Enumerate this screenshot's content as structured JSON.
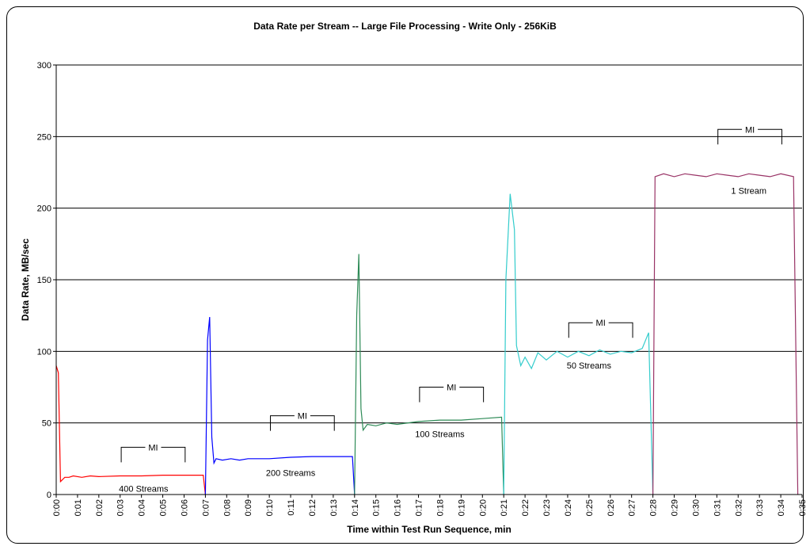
{
  "chart_data": {
    "type": "line",
    "title": "Data Rate per Stream -- Large File Processing - Write Only - 256KiB",
    "xlabel": "Time within Test Run Sequence, min",
    "ylabel": "Data Rate, MB/sec",
    "ylim": [
      0,
      300
    ],
    "yticks": [
      0,
      50,
      100,
      150,
      200,
      250,
      300
    ],
    "xlim": [
      0,
      35
    ],
    "xticks": [
      "0:00",
      "0:01",
      "0:02",
      "0:03",
      "0:04",
      "0:05",
      "0:06",
      "0:07",
      "0:08",
      "0:09",
      "0:10",
      "0:11",
      "0:12",
      "0:13",
      "0:14",
      "0:15",
      "0:16",
      "0:17",
      "0:18",
      "0:19",
      "0:20",
      "0:21",
      "0:22",
      "0:23",
      "0:24",
      "0:25",
      "0:26",
      "0:27",
      "0:28",
      "0:29",
      "0:30",
      "0:31",
      "0:32",
      "0:33",
      "0:34",
      "0:35"
    ],
    "grid": "horizontal",
    "series": [
      {
        "name": "400 Streams",
        "color": "#ff0000",
        "points": [
          [
            0.0,
            90
          ],
          [
            0.1,
            85
          ],
          [
            0.2,
            9
          ],
          [
            0.4,
            12
          ],
          [
            0.6,
            12
          ],
          [
            0.8,
            13
          ],
          [
            1.2,
            12
          ],
          [
            1.6,
            13
          ],
          [
            2.0,
            12.5
          ],
          [
            3.0,
            13
          ],
          [
            4.0,
            13
          ],
          [
            5.0,
            13.5
          ],
          [
            6.0,
            13.5
          ],
          [
            6.9,
            13.5
          ],
          [
            7.0,
            0
          ]
        ]
      },
      {
        "name": "200 Streams",
        "color": "#0000ff",
        "points": [
          [
            7.0,
            0
          ],
          [
            7.1,
            108
          ],
          [
            7.2,
            124
          ],
          [
            7.3,
            40
          ],
          [
            7.4,
            22
          ],
          [
            7.5,
            25
          ],
          [
            7.8,
            24
          ],
          [
            8.2,
            25
          ],
          [
            8.6,
            24
          ],
          [
            9.0,
            25
          ],
          [
            10.0,
            25
          ],
          [
            11.0,
            26
          ],
          [
            12.0,
            26.5
          ],
          [
            13.0,
            26.5
          ],
          [
            13.9,
            26.5
          ],
          [
            14.0,
            0
          ]
        ]
      },
      {
        "name": "100 Streams",
        "color": "#2e8b57",
        "points": [
          [
            14.0,
            0
          ],
          [
            14.1,
            125
          ],
          [
            14.2,
            168
          ],
          [
            14.3,
            60
          ],
          [
            14.4,
            45
          ],
          [
            14.6,
            49
          ],
          [
            15.0,
            48
          ],
          [
            15.5,
            50
          ],
          [
            16.0,
            49
          ],
          [
            17.0,
            51
          ],
          [
            18.0,
            52
          ],
          [
            19.0,
            52
          ],
          [
            20.0,
            53
          ],
          [
            20.9,
            54
          ],
          [
            21.0,
            0
          ]
        ]
      },
      {
        "name": "50 Streams",
        "color": "#33cccc",
        "points": [
          [
            21.0,
            0
          ],
          [
            21.1,
            150
          ],
          [
            21.3,
            210
          ],
          [
            21.5,
            185
          ],
          [
            21.6,
            104
          ],
          [
            21.8,
            90
          ],
          [
            22.0,
            96
          ],
          [
            22.3,
            88
          ],
          [
            22.6,
            99
          ],
          [
            23.0,
            94
          ],
          [
            23.5,
            100
          ],
          [
            24.0,
            96
          ],
          [
            24.5,
            100
          ],
          [
            25.0,
            97
          ],
          [
            25.5,
            101
          ],
          [
            26.0,
            98
          ],
          [
            26.5,
            100
          ],
          [
            27.0,
            99
          ],
          [
            27.5,
            102
          ],
          [
            27.8,
            113
          ],
          [
            28.0,
            0
          ]
        ]
      },
      {
        "name": "1 Stream",
        "color": "#993366",
        "points": [
          [
            28.0,
            0
          ],
          [
            28.1,
            222
          ],
          [
            28.5,
            224
          ],
          [
            29.0,
            222
          ],
          [
            29.5,
            224
          ],
          [
            30.0,
            223
          ],
          [
            30.5,
            222
          ],
          [
            31.0,
            224
          ],
          [
            31.5,
            223
          ],
          [
            32.0,
            222
          ],
          [
            32.5,
            224
          ],
          [
            33.0,
            223
          ],
          [
            33.5,
            222
          ],
          [
            34.0,
            224
          ],
          [
            34.6,
            222
          ],
          [
            34.8,
            0
          ]
        ]
      }
    ],
    "annotations": [
      {
        "text": "400 Streams",
        "x": 4.1,
        "y": 2
      },
      {
        "text": "200 Streams",
        "x": 11.0,
        "y": 13
      },
      {
        "text": "100 Streams",
        "x": 18.0,
        "y": 40
      },
      {
        "text": "50 Streams",
        "x": 25.0,
        "y": 88
      },
      {
        "text": "1 Stream",
        "x": 32.5,
        "y": 210
      }
    ],
    "mi_brackets": [
      {
        "text": "MI",
        "x0": 3.05,
        "x1": 6.05,
        "y": 33
      },
      {
        "text": "MI",
        "x0": 10.05,
        "x1": 13.05,
        "y": 55
      },
      {
        "text": "MI",
        "x0": 17.05,
        "x1": 20.05,
        "y": 75
      },
      {
        "text": "MI",
        "x0": 24.05,
        "x1": 27.05,
        "y": 120
      },
      {
        "text": "MI",
        "x0": 31.05,
        "x1": 34.05,
        "y": 255
      }
    ]
  }
}
